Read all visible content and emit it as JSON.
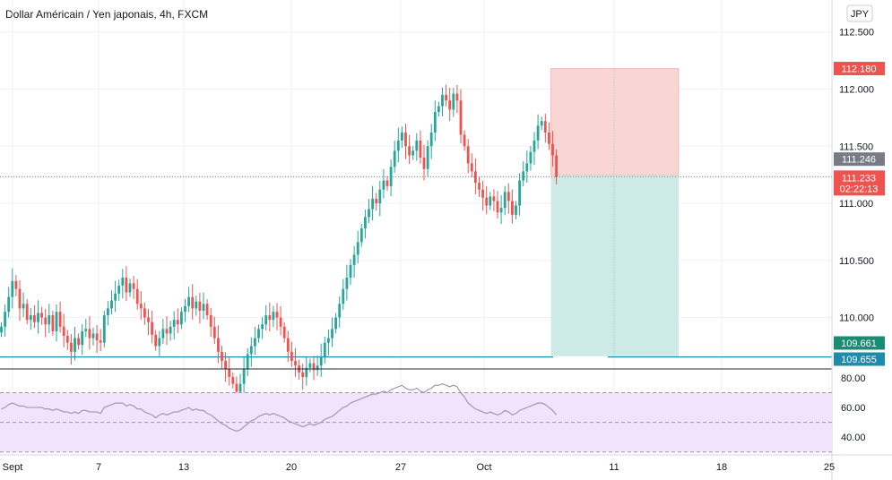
{
  "title": "Dollar Américain / Yen japonais, 4h, FXCM",
  "currency_label": "JPY",
  "colors": {
    "up": "#26a69a",
    "down": "#ef5350",
    "stop_zone": "#f9d6d3",
    "target_zone": "#cdeae6",
    "support_line": "#1e8bab",
    "current_line": "#ef5350",
    "rsi_fill": "#f0e3fb",
    "rsi_line": "#9b8fa4",
    "axis_text": "#131722",
    "grid": "#eef1f6"
  },
  "price_axis": {
    "ticks": [
      "112.500",
      "112.000",
      "111.500",
      "111.000",
      "110.500",
      "110.000"
    ],
    "ylim": [
      109.55,
      112.78
    ]
  },
  "badges": {
    "stop": "112.180",
    "entry": "111.246",
    "current": "111.233",
    "countdown": "02:22:13",
    "target": "109.661",
    "support": "109.655"
  },
  "rsi_axis": {
    "ticks": [
      "80.00",
      "60.00",
      "40.00"
    ],
    "ylim": [
      28,
      86
    ],
    "bands": [
      70,
      50,
      30
    ]
  },
  "x_axis": {
    "ticks": [
      "Sept",
      "7",
      "13",
      "20",
      "27",
      "Oct",
      "11",
      "18",
      "25"
    ]
  },
  "chart_data": {
    "type": "candlestick",
    "title": "Dollar Américain / Yen japonais, 4h, FXCM",
    "xlabel": "",
    "ylabel": "",
    "ylim": [
      109.55,
      112.78
    ],
    "position": {
      "type": "short",
      "entry": 111.246,
      "stop": 112.18,
      "target": 109.661
    },
    "support_level": 109.655,
    "current_price": 111.233,
    "candles_close": [
      109.92,
      110.05,
      110.18,
      110.32,
      110.25,
      110.08,
      110.12,
      109.98,
      110.02,
      109.96,
      110.04,
      110.0,
      109.94,
      110.02,
      109.88,
      110.05,
      109.92,
      109.84,
      109.78,
      109.7,
      109.82,
      109.76,
      109.88,
      109.9,
      109.82,
      109.86,
      109.8,
      109.78,
      110.02,
      110.08,
      110.15,
      110.21,
      110.28,
      110.35,
      110.22,
      110.3,
      110.25,
      110.12,
      110.08,
      110.0,
      109.96,
      109.85,
      109.75,
      109.82,
      109.9,
      109.86,
      109.92,
      109.98,
      109.94,
      110.05,
      110.1,
      110.18,
      110.08,
      110.14,
      110.06,
      110.12,
      110.02,
      109.92,
      109.82,
      109.7,
      109.62,
      109.55,
      109.48,
      109.42,
      109.35,
      109.42,
      109.55,
      109.68,
      109.75,
      109.82,
      109.9,
      109.94,
      110.02,
      109.98,
      110.05,
      110.0,
      109.92,
      109.82,
      109.7,
      109.62,
      109.58,
      109.52,
      109.48,
      109.56,
      109.6,
      109.54,
      109.58,
      109.66,
      109.78,
      109.82,
      109.9,
      110.0,
      110.12,
      110.25,
      110.35,
      110.46,
      110.55,
      110.66,
      110.78,
      110.88,
      110.95,
      111.04,
      111.0,
      111.12,
      111.2,
      111.15,
      111.32,
      111.46,
      111.55,
      111.62,
      111.5,
      111.42,
      111.46,
      111.55,
      111.4,
      111.3,
      111.5,
      111.62,
      111.8,
      111.85,
      111.95,
      111.9,
      111.82,
      111.96,
      111.9,
      111.6,
      111.5,
      111.35,
      111.28,
      111.18,
      111.12,
      111.05,
      110.98,
      111.06,
      111.02,
      110.92,
      110.96,
      111.1,
      111.02,
      110.9,
      110.98,
      111.2,
      111.28,
      111.35,
      111.45,
      111.55,
      111.68,
      111.72,
      111.62,
      111.52,
      111.42,
      111.23
    ],
    "rsi": [
      59,
      60,
      62,
      63,
      62,
      61,
      61,
      60,
      60,
      60,
      60,
      60,
      59,
      59,
      58,
      59,
      58,
      57,
      57,
      56,
      57,
      56,
      58,
      58,
      57,
      57,
      57,
      56,
      60,
      61,
      62,
      63,
      63,
      63,
      61,
      62,
      61,
      59,
      59,
      57,
      56,
      55,
      53,
      55,
      56,
      55,
      56,
      57,
      57,
      58,
      59,
      60,
      58,
      59,
      58,
      58,
      56,
      55,
      53,
      51,
      49,
      48,
      46,
      45,
      44,
      45,
      47,
      49,
      51,
      52,
      54,
      55,
      56,
      55,
      56,
      55,
      54,
      53,
      51,
      50,
      49,
      48,
      47,
      48,
      49,
      48,
      49,
      50,
      52,
      53,
      54,
      56,
      58,
      60,
      61,
      63,
      64,
      65,
      66,
      67,
      68,
      69,
      69,
      70,
      71,
      70,
      72,
      73,
      74,
      75,
      73,
      72,
      72,
      73,
      71,
      70,
      72,
      73,
      75,
      75,
      76,
      75,
      74,
      75,
      74,
      70,
      67,
      63,
      61,
      59,
      58,
      57,
      56,
      57,
      56,
      55,
      56,
      58,
      57,
      55,
      56,
      58,
      59,
      60,
      61,
      62,
      63,
      63,
      62,
      60,
      58,
      55
    ]
  }
}
